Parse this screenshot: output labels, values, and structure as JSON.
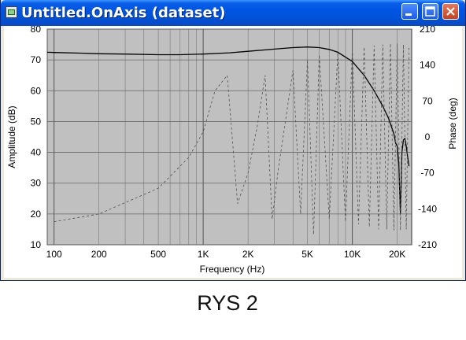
{
  "window": {
    "title": "Untitled.OnAxis (dataset)",
    "icon": "speaker-dataset-icon",
    "buttons": [
      "minimize-icon",
      "maximize-icon",
      "close-icon"
    ]
  },
  "caption": "RYS 2",
  "chart_data": {
    "type": "line",
    "title": "",
    "xlabel": "Frequency (Hz)",
    "ylabel": "Amplitude (dB)",
    "y2label": "Phase (deg)",
    "xscale": "log",
    "xlim": [
      90,
      25000
    ],
    "ylim": [
      10,
      80
    ],
    "y2lim": [
      -210,
      210
    ],
    "grid": true,
    "background": "#c0c0c0",
    "x_ticks": [
      {
        "value": 100,
        "label": "100"
      },
      {
        "value": 200,
        "label": "200"
      },
      {
        "value": 500,
        "label": "500"
      },
      {
        "value": 1000,
        "label": "1K"
      },
      {
        "value": 2000,
        "label": "2K"
      },
      {
        "value": 5000,
        "label": "5K"
      },
      {
        "value": 10000,
        "label": "10K"
      },
      {
        "value": 20000,
        "label": "20K"
      }
    ],
    "y_ticks": [
      10,
      20,
      30,
      40,
      50,
      60,
      70,
      80
    ],
    "y2_ticks": [
      -210,
      -140,
      -70,
      0,
      70,
      140,
      210
    ],
    "series": [
      {
        "style": "solid",
        "axis": "left",
        "color": "#000000",
        "x": [
          90,
          100,
          150,
          200,
          300,
          500,
          700,
          1000,
          1500,
          2000,
          3000,
          4000,
          5000,
          6000,
          7000,
          8000,
          10000,
          12000,
          14000,
          16000,
          17500,
          19000,
          19500,
          20000,
          20500,
          21000,
          21500,
          22000,
          22500,
          23000,
          23500,
          24000
        ],
        "y": [
          72.5,
          72.4,
          72.2,
          72.0,
          71.9,
          71.7,
          71.7,
          71.9,
          72.3,
          72.8,
          73.5,
          74.0,
          74.2,
          74.0,
          73.4,
          72.5,
          69.5,
          65.0,
          60.0,
          55.0,
          51.0,
          46.0,
          43.0,
          42.0,
          36.0,
          20.0,
          40.0,
          44.0,
          44.5,
          42.0,
          38.5,
          35.5
        ]
      },
      {
        "style": "dashed",
        "axis": "right",
        "color": "#505050",
        "x": [
          100,
          200,
          500,
          800,
          1000,
          1200,
          1450,
          1700,
          2000,
          2300,
          2600,
          2900,
          3200,
          3600,
          4000,
          4500,
          5000,
          5500,
          6000,
          7000,
          8000,
          9000,
          10000,
          11000,
          12000,
          13000,
          14000,
          15000,
          16000,
          17000,
          18000,
          19000,
          20000,
          21000,
          22000,
          23000,
          24000
        ],
        "y": [
          -165,
          -150,
          -100,
          -40,
          10,
          90,
          120,
          -130,
          -70,
          20,
          120,
          -160,
          -60,
          40,
          130,
          -150,
          150,
          -190,
          160,
          -160,
          165,
          -165,
          170,
          -170,
          175,
          -175,
          178,
          -180,
          180,
          -180,
          182,
          -182,
          182,
          -182,
          180,
          -180,
          178
        ]
      }
    ]
  }
}
